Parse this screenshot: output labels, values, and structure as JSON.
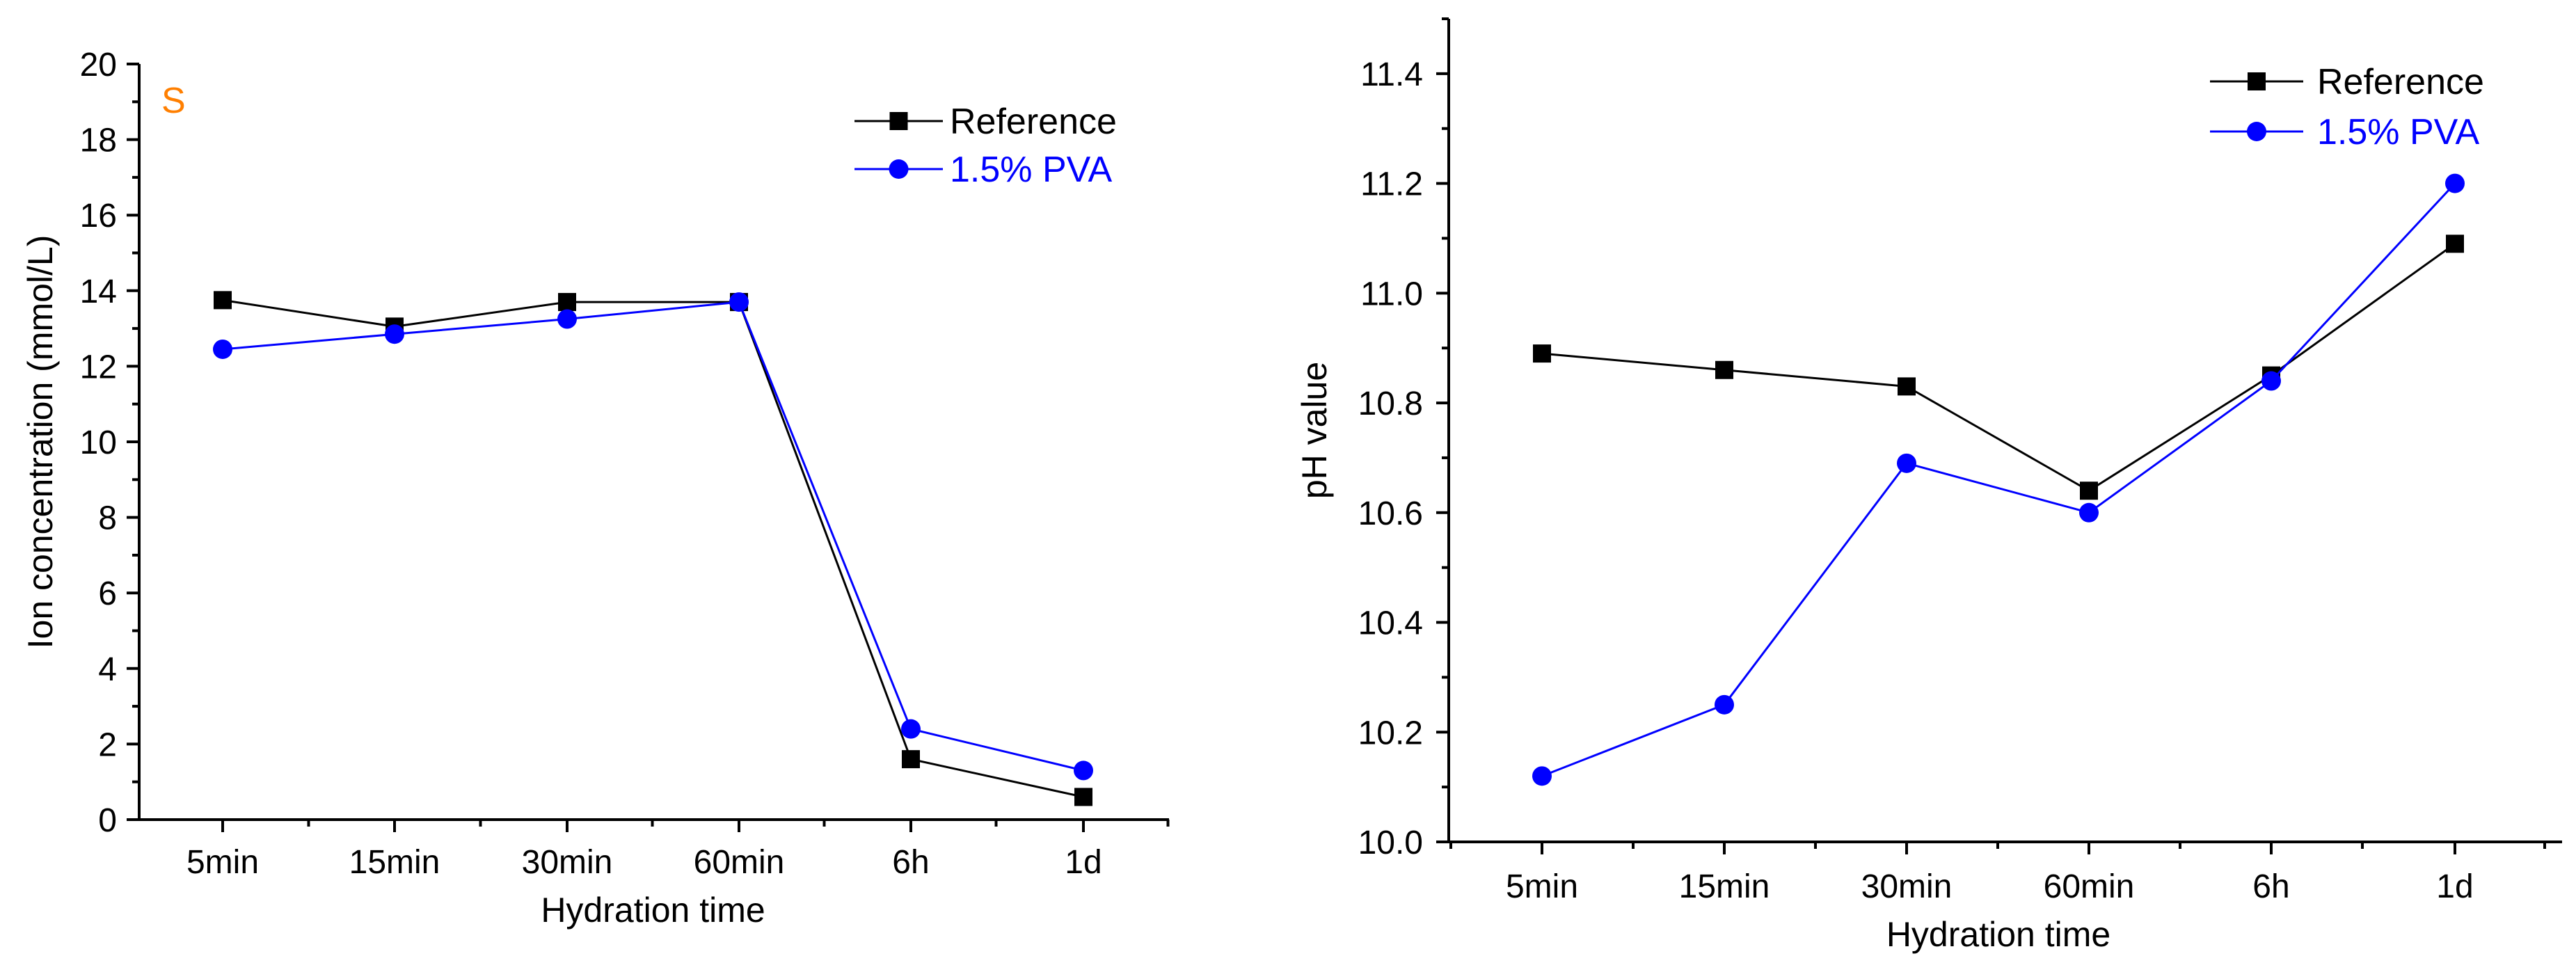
{
  "chart_data": [
    {
      "type": "line",
      "title": "",
      "annotation": "S",
      "annotation_color": "#ff7f00",
      "xlabel": "Hydration time",
      "ylabel": "Ion concentration (mmol/L)",
      "categories": [
        "5min",
        "15min",
        "30min",
        "60min",
        "6h",
        "1d"
      ],
      "ylim": [
        0,
        20
      ],
      "yticks": [
        "0",
        "2",
        "4",
        "6",
        "8",
        "10",
        "12",
        "14",
        "16",
        "18",
        "20"
      ],
      "legend_position": "top-right",
      "series": [
        {
          "name": "Reference",
          "color": "#000000",
          "marker": "square",
          "values": [
            13.75,
            13.05,
            13.7,
            13.7,
            1.6,
            0.6
          ]
        },
        {
          "name": "1.5% PVA",
          "color": "#0000ff",
          "marker": "circle",
          "values": [
            12.45,
            12.85,
            13.25,
            13.7,
            2.4,
            1.3
          ]
        }
      ]
    },
    {
      "type": "line",
      "title": "",
      "xlabel": "Hydration time",
      "ylabel": "pH value",
      "categories": [
        "5min",
        "15min",
        "30min",
        "60min",
        "6h",
        "1d"
      ],
      "ylim": [
        10.0,
        11.5
      ],
      "yticks": [
        "10.0",
        "10.2",
        "10.4",
        "10.6",
        "10.8",
        "11.0",
        "11.2",
        "11.4"
      ],
      "legend_position": "top-right",
      "series": [
        {
          "name": "Reference",
          "color": "#000000",
          "marker": "square",
          "values": [
            10.89,
            10.86,
            10.83,
            10.64,
            10.85,
            11.09
          ]
        },
        {
          "name": "1.5% PVA",
          "color": "#0000ff",
          "marker": "circle",
          "values": [
            10.12,
            10.25,
            10.69,
            10.6,
            10.84,
            11.2
          ]
        }
      ]
    }
  ]
}
